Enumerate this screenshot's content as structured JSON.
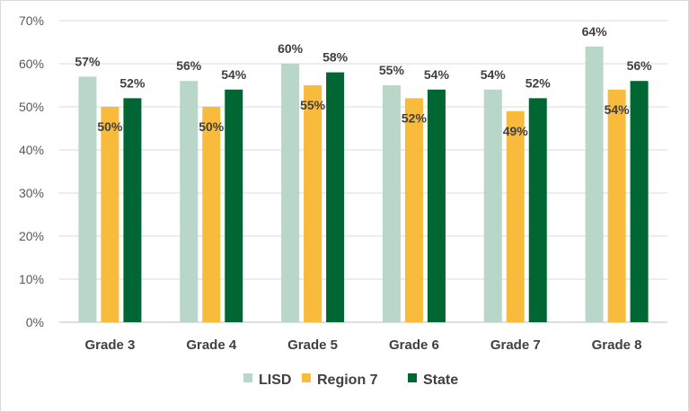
{
  "chart_data": {
    "type": "bar",
    "title": "",
    "xlabel": "",
    "ylabel": "",
    "categories": [
      "Grade 3",
      "Grade 4",
      "Grade 5",
      "Grade 6",
      "Grade 7",
      "Grade 8"
    ],
    "series": [
      {
        "name": "LISD",
        "color": "#b9d7c8",
        "values": [
          57,
          56,
          60,
          55,
          54,
          64
        ]
      },
      {
        "name": "Region 7",
        "color": "#f8bb3c",
        "values": [
          50,
          50,
          55,
          52,
          49,
          54
        ]
      },
      {
        "name": "State",
        "color": "#006633",
        "values": [
          52,
          54,
          58,
          54,
          52,
          56
        ]
      }
    ],
    "ylim": [
      0,
      70
    ],
    "yticks": [
      "0%",
      "10%",
      "20%",
      "30%",
      "40%",
      "50%",
      "60%",
      "70%"
    ],
    "value_suffix": "%",
    "grid": true,
    "legend_position": "bottom"
  }
}
